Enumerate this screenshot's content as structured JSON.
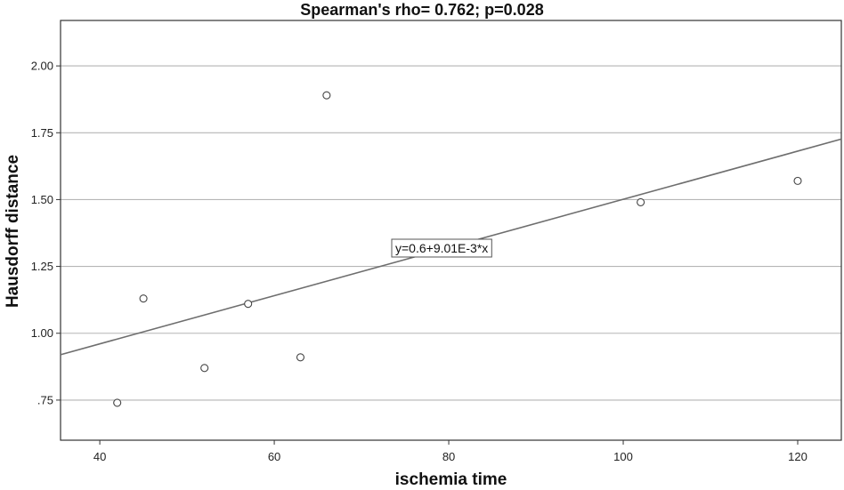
{
  "chart_data": {
    "type": "scatter",
    "title": "Spearman's rho= 0.762; p=0.028",
    "xlabel": "ischemia time",
    "ylabel": "Hausdorff distance",
    "xlim": [
      35.5,
      125
    ],
    "ylim": [
      0.6,
      2.17
    ],
    "x_ticks": [
      40,
      60,
      80,
      100,
      120
    ],
    "x_tick_labels": [
      "40",
      "60",
      "80",
      "100",
      "120"
    ],
    "y_ticks": [
      0.75,
      1.0,
      1.25,
      1.5,
      1.75,
      2.0
    ],
    "y_tick_labels": [
      ".75",
      "1.00",
      "1.25",
      "1.50",
      "1.75",
      "2.00"
    ],
    "grid": "horizontal",
    "points": [
      {
        "x": 42,
        "y": 0.74
      },
      {
        "x": 45,
        "y": 1.13
      },
      {
        "x": 52,
        "y": 0.87
      },
      {
        "x": 57,
        "y": 1.11
      },
      {
        "x": 63,
        "y": 0.91
      },
      {
        "x": 66,
        "y": 1.89
      },
      {
        "x": 102,
        "y": 1.49
      },
      {
        "x": 120,
        "y": 1.57
      }
    ],
    "fit_line": {
      "intercept": 0.6,
      "slope": 0.00901,
      "label": "y=0.6+9.01E-3*x"
    }
  }
}
